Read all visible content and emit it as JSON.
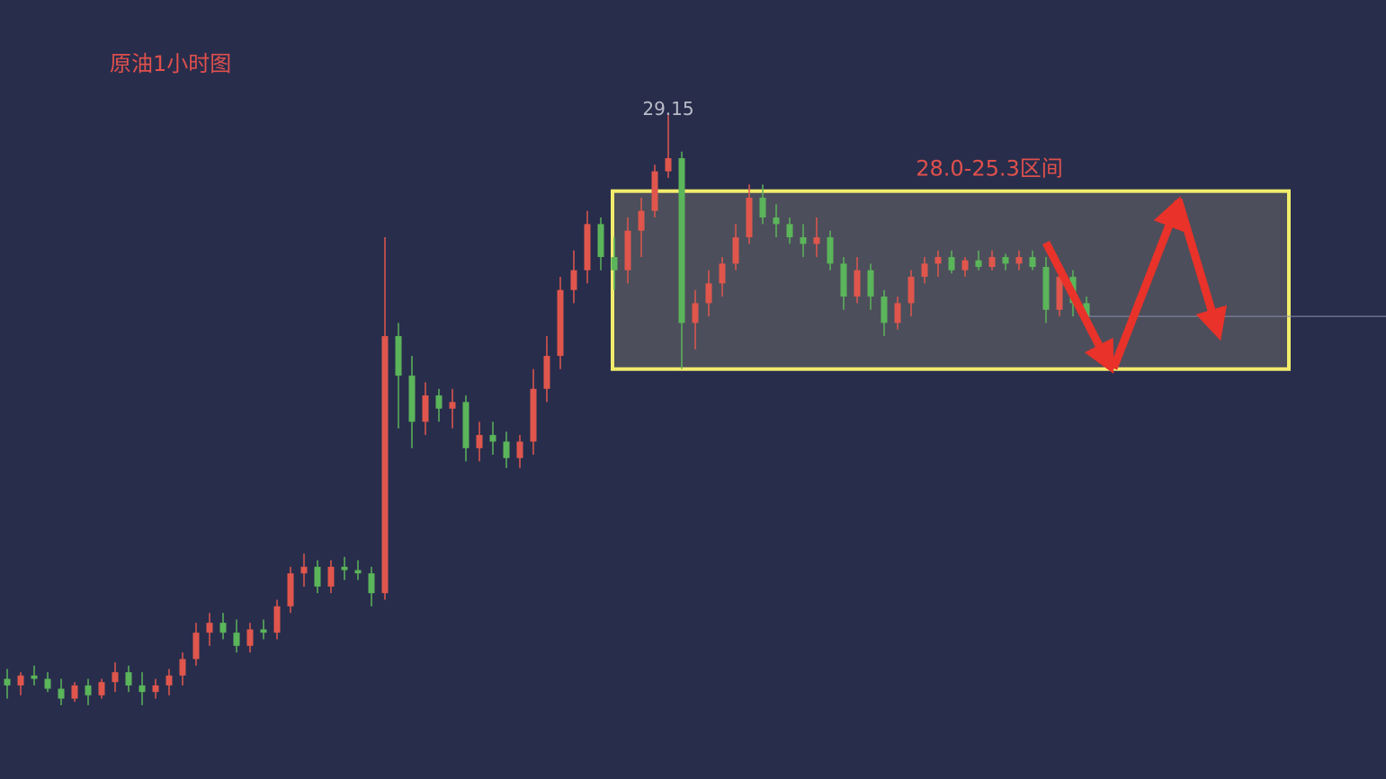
{
  "chart_data": {
    "type": "candlestick",
    "title": "原油1小时图",
    "ylim": [
      19.08,
      30.9
    ],
    "up_color": "#e0564c",
    "down_color": "#5bb55a",
    "high_label_index": 49,
    "range_box": {
      "label": "28.0-25.3区间",
      "high": 28.0,
      "low": 25.3,
      "color": "#f2ec6c"
    },
    "open": [
      20.6,
      20.5,
      20.65,
      20.6,
      20.45,
      20.3,
      20.5,
      20.35,
      20.55,
      20.7,
      20.5,
      20.4,
      20.5,
      20.65,
      20.9,
      21.3,
      21.45,
      21.3,
      21.1,
      21.35,
      21.3,
      21.7,
      22.2,
      22.3,
      22.0,
      22.3,
      22.25,
      22.2,
      21.9,
      25.8,
      25.2,
      24.5,
      24.9,
      24.7,
      24.8,
      24.1,
      24.3,
      24.2,
      23.95,
      24.2,
      25.0,
      25.5,
      26.5,
      26.8,
      27.5,
      27.0,
      26.8,
      27.4,
      27.7,
      28.3,
      28.5,
      26.0,
      26.3,
      26.6,
      26.9,
      27.3,
      27.9,
      27.6,
      27.5,
      27.3,
      27.2,
      27.3,
      26.9,
      26.4,
      26.8,
      26.4,
      26.0,
      26.3,
      26.7,
      26.9,
      27.0,
      26.8,
      26.95,
      26.85,
      27.0,
      26.9,
      27.0,
      26.85,
      26.2,
      26.7,
      26.3
    ],
    "high": [
      20.75,
      20.7,
      20.8,
      20.7,
      20.6,
      20.55,
      20.6,
      20.6,
      20.85,
      20.8,
      20.7,
      20.6,
      20.75,
      21.0,
      21.45,
      21.6,
      21.6,
      21.5,
      21.45,
      21.5,
      21.8,
      22.3,
      22.5,
      22.4,
      22.4,
      22.45,
      22.4,
      22.3,
      27.3,
      26.0,
      25.5,
      25.1,
      25.0,
      25.0,
      24.9,
      24.5,
      24.5,
      24.35,
      24.3,
      25.3,
      25.8,
      26.7,
      27.1,
      27.7,
      27.6,
      27.3,
      27.6,
      27.9,
      28.4,
      29.15,
      28.6,
      26.5,
      26.8,
      27.0,
      27.5,
      28.1,
      28.1,
      27.8,
      27.6,
      27.5,
      27.6,
      27.4,
      27.0,
      27.0,
      26.9,
      26.5,
      26.4,
      26.8,
      27.0,
      27.1,
      27.1,
      27.0,
      27.1,
      27.1,
      27.05,
      27.1,
      27.1,
      27.0,
      26.8,
      26.8,
      26.4
    ],
    "low": [
      20.3,
      20.35,
      20.5,
      20.4,
      20.2,
      20.25,
      20.2,
      20.3,
      20.4,
      20.4,
      20.2,
      20.3,
      20.35,
      20.5,
      20.8,
      21.1,
      21.2,
      21.0,
      21.0,
      21.2,
      21.2,
      21.6,
      22.0,
      21.9,
      21.9,
      22.1,
      22.1,
      21.7,
      21.8,
      24.4,
      24.1,
      24.3,
      24.5,
      24.4,
      23.9,
      23.9,
      24.0,
      23.8,
      23.8,
      24.0,
      24.8,
      25.3,
      26.3,
      26.6,
      26.8,
      26.5,
      26.6,
      27.0,
      27.6,
      28.2,
      25.3,
      25.6,
      26.1,
      26.4,
      26.8,
      27.2,
      27.5,
      27.3,
      27.2,
      27.0,
      27.0,
      26.8,
      26.2,
      26.3,
      26.2,
      25.8,
      25.9,
      26.1,
      26.6,
      26.7,
      26.75,
      26.7,
      26.8,
      26.8,
      26.8,
      26.8,
      26.8,
      26.0,
      26.1,
      26.1,
      26.0
    ],
    "close": [
      20.5,
      20.65,
      20.6,
      20.45,
      20.3,
      20.5,
      20.35,
      20.55,
      20.7,
      20.5,
      20.4,
      20.5,
      20.65,
      20.9,
      21.3,
      21.45,
      21.3,
      21.1,
      21.35,
      21.3,
      21.7,
      22.2,
      22.3,
      22.0,
      22.3,
      22.25,
      22.2,
      21.9,
      25.8,
      25.2,
      24.5,
      24.9,
      24.7,
      24.8,
      24.1,
      24.3,
      24.2,
      23.95,
      24.2,
      25.0,
      25.5,
      26.5,
      26.8,
      27.5,
      27.0,
      26.8,
      27.4,
      27.7,
      28.3,
      28.5,
      26.0,
      26.3,
      26.6,
      26.9,
      27.3,
      27.9,
      27.6,
      27.5,
      27.3,
      27.2,
      27.3,
      26.9,
      26.4,
      26.8,
      26.4,
      26.0,
      26.3,
      26.7,
      26.9,
      27.0,
      26.8,
      26.95,
      26.85,
      27.0,
      26.9,
      27.0,
      26.85,
      26.2,
      26.7,
      26.3,
      26.1
    ]
  }
}
